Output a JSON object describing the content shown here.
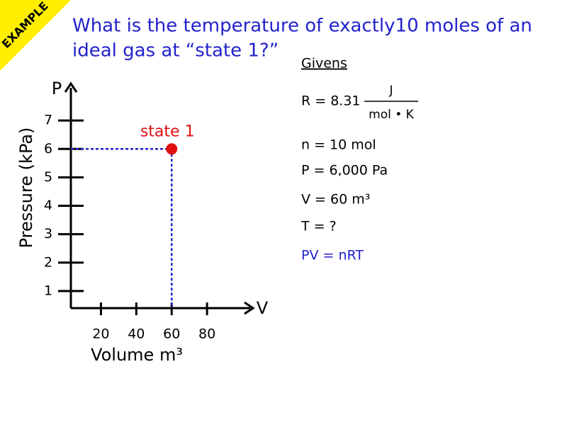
{
  "banner": "EXAMPLE",
  "title": [
    "What is the temperature of exactly10 moles of an",
    "ideal gas at “state 1?”"
  ],
  "givens": {
    "heading": "Givens",
    "r_prefix": "R = 8.31",
    "r_numerator": "J",
    "r_denominator": "mol • K",
    "lines": [
      "n = 10 mol",
      "P = 6,000 Pa",
      "V = 60 m³",
      "T = ?"
    ],
    "equation": "PV = nRT"
  },
  "chart_data": {
    "type": "scatter",
    "ylabel": "Pressure (kPa)",
    "xlabel": "Volume m³",
    "y_axis_letter": "P",
    "x_axis_letter": "V",
    "x": [
      60
    ],
    "values": [
      6
    ],
    "color": "#e01010",
    "line_color": "#2222cc",
    "annotation": "state 1",
    "xlim": [
      3,
      106
    ],
    "ylim": [
      0.4,
      8.3
    ],
    "xticks": [
      20,
      40,
      60,
      80
    ],
    "yticks": [
      1,
      2,
      3,
      4,
      5,
      6,
      7
    ]
  }
}
